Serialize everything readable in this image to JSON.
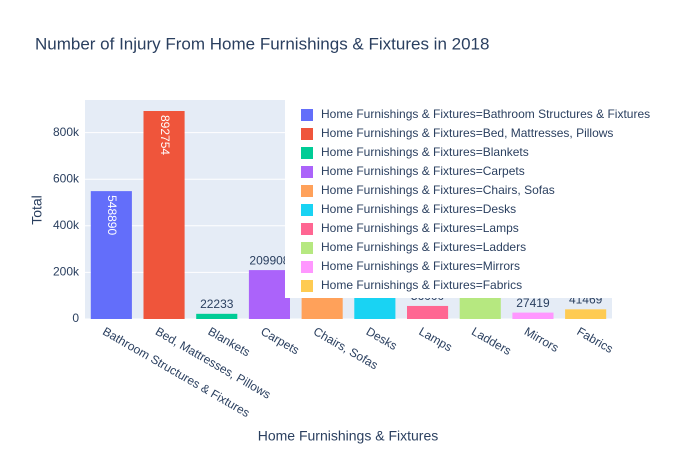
{
  "chart_data": {
    "type": "bar",
    "title": "Number of Injury From Home Furnishings & Fixtures in 2018",
    "x_label": "Home Furnishings & Fixtures",
    "y_label": "Total",
    "categories": [
      "Bathroom Structures & Fixtures",
      "Bed, Mattresses, Pillows",
      "Blankets",
      "Carpets",
      "Chairs, Sofas",
      "Desks",
      "Lamps",
      "Ladders",
      "Mirrors",
      "Fabrics"
    ],
    "values": [
      548890,
      892754,
      22233,
      209908,
      300000,
      150000,
      56000,
      130000,
      27419,
      41469
    ],
    "colors": [
      "#636efa",
      "#EF553B",
      "#00cc96",
      "#ab63fa",
      "#FFA15A",
      "#19d3f3",
      "#FF6692",
      "#B6E880",
      "#FF97FF",
      "#FECB52"
    ],
    "legend_labels": [
      "Home Furnishings & Fixtures=Bathroom Structures & Fixtures",
      "Home Furnishings & Fixtures=Bed, Mattresses, Pillows",
      "Home Furnishings & Fixtures=Blankets",
      "Home Furnishings & Fixtures=Carpets",
      "Home Furnishings & Fixtures=Chairs, Sofas",
      "Home Furnishings & Fixtures=Desks",
      "Home Furnishings & Fixtures=Lamps",
      "Home Furnishings & Fixtures=Ladders",
      "Home Furnishings & Fixtures=Mirrors",
      "Home Furnishings & Fixtures=Fabrics"
    ],
    "ylim": [
      0,
      940000
    ],
    "yticks": [
      0,
      {
        "value": 200000,
        "label": "200k"
      },
      {
        "value": 400000,
        "label": "400k"
      },
      {
        "value": 600000,
        "label": "600k"
      },
      {
        "value": 800000,
        "label": "800k"
      }
    ],
    "grid": true,
    "legend_position": "upper right"
  }
}
